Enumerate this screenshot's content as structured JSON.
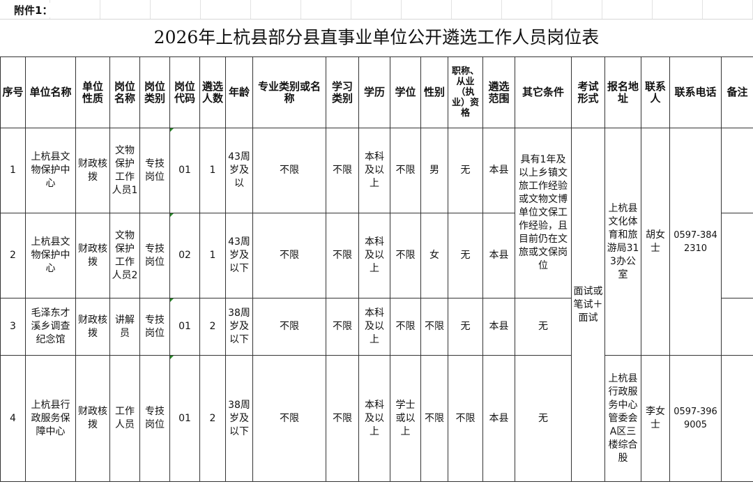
{
  "attachment_label": "附件1：",
  "title": "2026年上杭县部分县直事业单位公开遴选工作人员岗位表",
  "headers": [
    "序号",
    "单位名称",
    "单位性质",
    "岗位名称",
    "岗位类别",
    "岗位代码",
    "遴选人数",
    "年龄",
    "专业类别或名称",
    "学习类别",
    "学历",
    "学位",
    "性别",
    "职称、从业（执业）资格",
    "遴选范围",
    "其它条件",
    "考试形式",
    "报名地址",
    "联系人",
    "联系电话",
    "备注"
  ],
  "rows": [
    {
      "no": "1",
      "unit": "上杭县文物保护中心",
      "nature": "财政核拨",
      "post": "文物保护工作人员1",
      "category": "专技岗位",
      "code": "01",
      "count": "1",
      "age": "43周岁及以",
      "major": "不限",
      "study": "不限",
      "edu": "本科及以上",
      "degree": "不限",
      "gender": "男",
      "qual": "无",
      "scope": "本县"
    },
    {
      "no": "2",
      "unit": "上杭县文物保护中心",
      "nature": "财政核拨",
      "post": "文物保护工作人员2",
      "category": "专技岗位",
      "code": "02",
      "count": "1",
      "age": "43周岁及以下",
      "major": "不限",
      "study": "不限",
      "edu": "本科及以上",
      "degree": "不限",
      "gender": "女",
      "qual": "无",
      "scope": "本县"
    },
    {
      "no": "3",
      "unit": "毛泽东才溪乡调查纪念馆",
      "nature": "财政核拨",
      "post": "讲解员",
      "category": "专技岗位",
      "code": "01",
      "count": "2",
      "age": "38周岁及以下",
      "major": "不限",
      "study": "不限",
      "edu": "本科及以上",
      "degree": "不限",
      "gender": "不限",
      "qual": "无",
      "scope": "本县",
      "other": "无"
    },
    {
      "no": "4",
      "unit": "上杭县行政服务保障中心",
      "nature": "财政核拨",
      "post": "工作人员",
      "category": "专技岗位",
      "code": "01",
      "count": "2",
      "age": "38周岁及以下",
      "major": "不限",
      "study": "不限",
      "edu": "本科及以上",
      "degree": "学士或以上",
      "gender": "不限",
      "qual": "不限",
      "scope": "本县",
      "other": "无",
      "address": "上杭县行政服务中心管委会A区三楼综合股",
      "contact": "李女士",
      "phone": "0597-3969005"
    }
  ],
  "merged": {
    "other_rows12": "具有1年及以上乡镇文旅工作经验或文物文博单位文保工作经验，且目前仍在文旅或文保岗位",
    "exam": "面试或笔试＋面试",
    "address_rows123": "上杭县文化体育和旅游局313办公室",
    "contact_rows123": "胡女士",
    "phone_rows123": "0597-3842310"
  }
}
